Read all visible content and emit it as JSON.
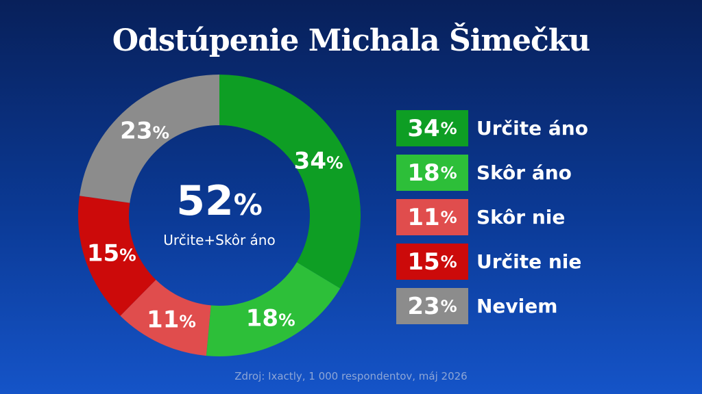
{
  "title": "Odstúpenie Michala Šimečku",
  "center": {
    "value": "52",
    "unit": "%",
    "label": "Určite+Skôr áno"
  },
  "source": "Zdroj: Ixactly, 1 000 respondentov, máj 2026",
  "chart_data": {
    "type": "pie",
    "title": "Odstúpenie Michala Šimečku",
    "unit": "%",
    "slices": [
      {
        "label": "Určite áno",
        "value": 34,
        "color": "#0e9e24"
      },
      {
        "label": "Skôr áno",
        "value": 18,
        "color": "#2dbf39"
      },
      {
        "label": "Skôr nie",
        "value": 11,
        "color": "#e04d4d"
      },
      {
        "label": "Určite nie",
        "value": 15,
        "color": "#cc0a0a"
      },
      {
        "label": "Neviem",
        "value": 23,
        "color": "#8c8c8c"
      }
    ],
    "legend_position": "right"
  }
}
